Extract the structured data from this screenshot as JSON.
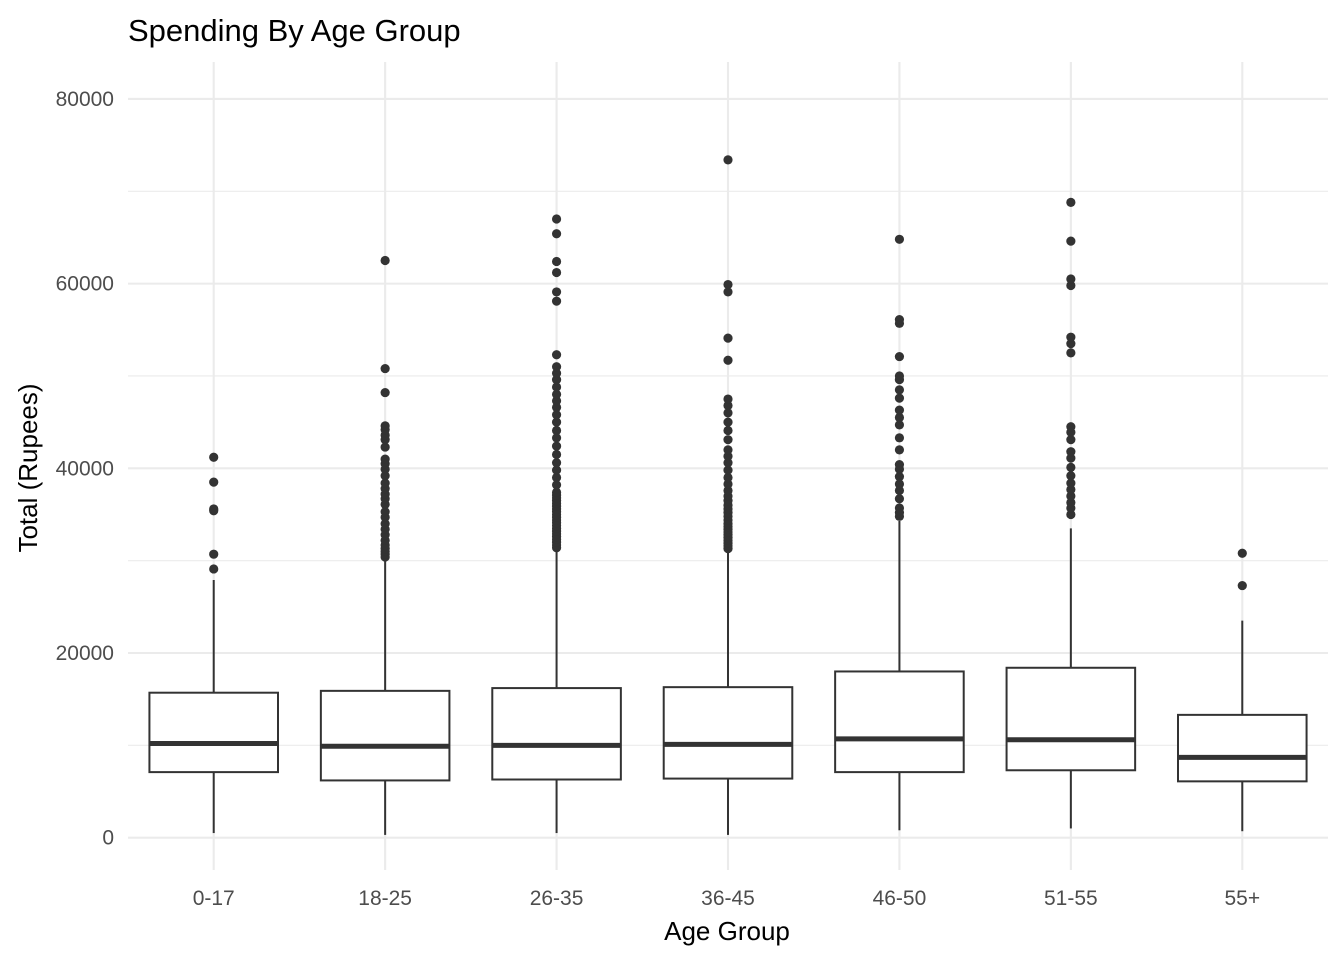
{
  "chart_data": {
    "type": "boxplot",
    "title": "Spending By Age Group",
    "xlabel": "Age Group",
    "ylabel": "Total (Rupees)",
    "ylim": [
      -3500,
      84000
    ],
    "yticks": [
      0,
      20000,
      40000,
      60000,
      80000
    ],
    "grid": true,
    "legend": "none",
    "colors": {
      "box": "#333333",
      "grid": "#ebebeb",
      "tick_label": "#4d4d4d",
      "text": "#000000",
      "background": "#ffffff"
    },
    "categories": [
      "0-17",
      "18-25",
      "26-35",
      "36-45",
      "46-50",
      "51-55",
      "55+"
    ],
    "boxes": [
      {
        "category": "0-17",
        "whisker_low": 500,
        "q1": 7100,
        "median": 10200,
        "q3": 15700,
        "whisker_high": 27900,
        "outliers": [
          29100,
          30700,
          35400,
          35600,
          38500,
          41200
        ]
      },
      {
        "category": "18-25",
        "whisker_low": 300,
        "q1": 6200,
        "median": 9900,
        "q3": 15900,
        "whisker_high": 30200,
        "outliers": [
          30400,
          30700,
          31000,
          31300,
          31700,
          32200,
          32800,
          33400,
          34000,
          34700,
          35300,
          36100,
          36700,
          37200,
          37800,
          38400,
          39200,
          39900,
          40500,
          41000,
          42300,
          43100,
          43600,
          44200,
          44600,
          48200,
          50800,
          62500
        ]
      },
      {
        "category": "26-35",
        "whisker_low": 500,
        "q1": 6300,
        "median": 10000,
        "q3": 16200,
        "whisker_high": 31200,
        "outliers": [
          31400,
          31700,
          32000,
          32300,
          32600,
          32900,
          33200,
          33500,
          33800,
          34100,
          34400,
          34700,
          35000,
          35300,
          35600,
          35900,
          36200,
          36500,
          36800,
          37100,
          37400,
          38200,
          39000,
          39800,
          40600,
          41500,
          42400,
          43300,
          44100,
          45000,
          45800,
          46600,
          47300,
          48000,
          48800,
          49600,
          50300,
          51000,
          52300,
          58100,
          59100,
          61200,
          62400,
          65400,
          67000
        ]
      },
      {
        "category": "36-45",
        "whisker_low": 300,
        "q1": 6400,
        "median": 10100,
        "q3": 16300,
        "whisker_high": 31100,
        "outliers": [
          31300,
          31600,
          31900,
          32200,
          32500,
          32800,
          33100,
          33400,
          33700,
          34000,
          34400,
          34800,
          35200,
          35600,
          36000,
          36500,
          37000,
          37600,
          38300,
          39000,
          39800,
          40600,
          41300,
          42000,
          43100,
          44100,
          45000,
          46000,
          46800,
          47500,
          51700,
          54100,
          59100,
          59900,
          73400
        ]
      },
      {
        "category": "46-50",
        "whisker_low": 800,
        "q1": 7100,
        "median": 10700,
        "q3": 18000,
        "whisker_high": 34300,
        "outliers": [
          34800,
          35200,
          35700,
          36700,
          37600,
          38300,
          39100,
          39900,
          40400,
          42000,
          43300,
          44700,
          45500,
          46300,
          47600,
          48500,
          49600,
          50000,
          52100,
          55700,
          56100,
          64800
        ]
      },
      {
        "category": "51-55",
        "whisker_low": 1000,
        "q1": 7300,
        "median": 10600,
        "q3": 18400,
        "whisker_high": 33500,
        "outliers": [
          35000,
          35700,
          36300,
          37000,
          37700,
          38400,
          39200,
          40100,
          41100,
          41800,
          43100,
          43900,
          44500,
          52500,
          53500,
          54200,
          59800,
          60500,
          64600,
          68800
        ]
      },
      {
        "category": "55+",
        "whisker_low": 700,
        "q1": 6100,
        "median": 8700,
        "q3": 13300,
        "whisker_high": 23500,
        "outliers": [
          27300,
          30800
        ]
      }
    ]
  }
}
